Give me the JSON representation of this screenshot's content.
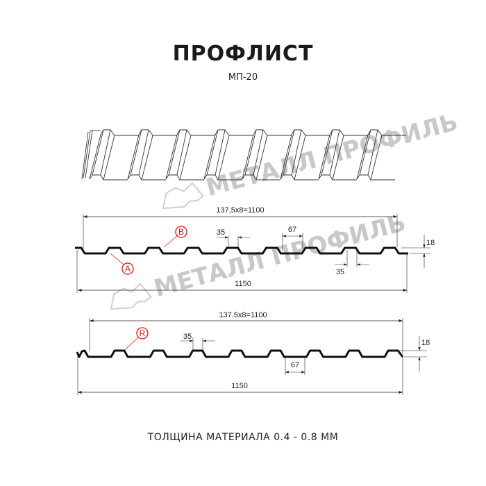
{
  "header": {
    "title": "ПРОФЛИСТ",
    "subtitle": "МП-20"
  },
  "watermark": {
    "text": "МЕТАЛЛ ПРОФИЛЬ"
  },
  "profile_a": {
    "pitch_label": "137,5x8=1100",
    "top_width_label": "35",
    "bottom_width_label": "67",
    "bottom_gap_label": "35",
    "height_label": "18",
    "total_width_label": "1150",
    "callout_b": "B",
    "callout_a": "A"
  },
  "profile_r": {
    "pitch_label": "137.5x8=1100",
    "top_width_label": "35",
    "bottom_width_label": "67",
    "height_label": "18",
    "total_width_label": "1150",
    "callout_r": "R"
  },
  "footer": {
    "material": "ТОЛЩИНА МАТЕРИАЛА 0.4 - 0.8 ММ"
  },
  "colors": {
    "profile": "#111111",
    "callout": "#e01010",
    "watermark": "#c8c8c8"
  }
}
